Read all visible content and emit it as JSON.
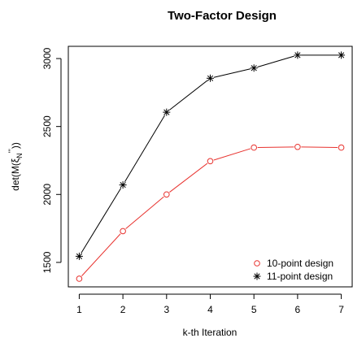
{
  "chart_data": {
    "type": "line",
    "title": "Two-Factor Design",
    "xlabel": "k-th Iteration",
    "ylabel": "det(M(ξN*'))",
    "ylabel_main": "det(M(",
    "ylabel_xi": "ξ",
    "ylabel_sub": "N",
    "ylabel_sup": "'''",
    "ylabel_tail": "))",
    "x": [
      1,
      2,
      3,
      4,
      5,
      6,
      7
    ],
    "xlim": [
      0.75,
      7.25
    ],
    "ylim": [
      1320,
      3090
    ],
    "xticks": [
      1,
      2,
      3,
      4,
      5,
      6,
      7
    ],
    "yticks": [
      1500,
      2000,
      2500,
      3000
    ],
    "grid": false,
    "legend_position": "bottom-right",
    "series": [
      {
        "name": "10-point design",
        "color": "#e8322e",
        "marker": "circle",
        "values": [
          1380,
          1730,
          2000,
          2245,
          2345,
          2350,
          2345
        ]
      },
      {
        "name": "11-point design",
        "color": "#000000",
        "marker": "asterisk",
        "values": [
          1545,
          2070,
          2605,
          2855,
          2930,
          3025,
          3025
        ]
      }
    ]
  }
}
